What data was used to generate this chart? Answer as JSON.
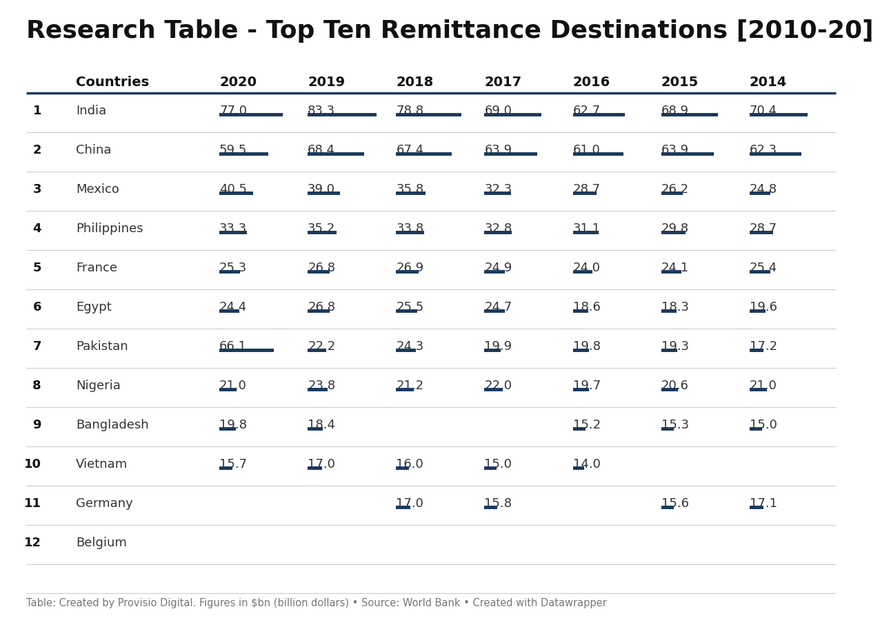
{
  "title": "Research Table - Top Ten Remittance Destinations [2010-20]",
  "footer": "Table: Created by Provisio Digital. Figures in $bn (billion dollars) • Source: World Bank • Created with Datawrapper",
  "col_years": [
    "2020",
    "2019",
    "2018",
    "2017",
    "2016",
    "2015",
    "2014"
  ],
  "rows": [
    {
      "rank": "1",
      "country": "India",
      "2020": 77.0,
      "2019": 83.3,
      "2018": 78.8,
      "2017": 69.0,
      "2016": 62.7,
      "2015": 68.9,
      "2014": 70.4
    },
    {
      "rank": "2",
      "country": "China",
      "2020": 59.5,
      "2019": 68.4,
      "2018": 67.4,
      "2017": 63.9,
      "2016": 61.0,
      "2015": 63.9,
      "2014": 62.3
    },
    {
      "rank": "3",
      "country": "Mexico",
      "2020": 40.5,
      "2019": 39.0,
      "2018": 35.8,
      "2017": 32.3,
      "2016": 28.7,
      "2015": 26.2,
      "2014": 24.8
    },
    {
      "rank": "4",
      "country": "Philippines",
      "2020": 33.3,
      "2019": 35.2,
      "2018": 33.8,
      "2017": 32.8,
      "2016": 31.1,
      "2015": 29.8,
      "2014": 28.7
    },
    {
      "rank": "5",
      "country": "France",
      "2020": 25.3,
      "2019": 26.8,
      "2018": 26.9,
      "2017": 24.9,
      "2016": 24.0,
      "2015": 24.1,
      "2014": 25.4
    },
    {
      "rank": "6",
      "country": "Egypt",
      "2020": 24.4,
      "2019": 26.8,
      "2018": 25.5,
      "2017": 24.7,
      "2016": 18.6,
      "2015": 18.3,
      "2014": 19.6
    },
    {
      "rank": "7",
      "country": "Pakistan",
      "2020": 66.1,
      "2019": 22.2,
      "2018": 24.3,
      "2017": 19.9,
      "2016": 19.8,
      "2015": 19.3,
      "2014": 17.2
    },
    {
      "rank": "8",
      "country": "Nigeria",
      "2020": 21.0,
      "2019": 23.8,
      "2018": 21.2,
      "2017": 22.0,
      "2016": 19.7,
      "2015": 20.6,
      "2014": 21.0
    },
    {
      "rank": "9",
      "country": "Bangladesh",
      "2020": 19.8,
      "2019": 18.4,
      "2018": null,
      "2017": null,
      "2016": 15.2,
      "2015": 15.3,
      "2014": 15.0
    },
    {
      "rank": "10",
      "country": "Vietnam",
      "2020": 15.7,
      "2019": 17.0,
      "2018": 16.0,
      "2017": 15.0,
      "2016": 14.0,
      "2015": null,
      "2014": null
    },
    {
      "rank": "11",
      "country": "Germany",
      "2020": null,
      "2019": null,
      "2018": 17.0,
      "2017": 15.8,
      "2016": null,
      "2015": 15.6,
      "2014": 17.1
    },
    {
      "rank": "12",
      "country": "Belgium",
      "2020": null,
      "2019": null,
      "2018": null,
      "2017": null,
      "2016": null,
      "2015": null,
      "2014": null
    }
  ],
  "bar_color": "#1b3a5c",
  "bar_max": 83.3,
  "bg_color": "#ffffff",
  "title_color": "#111111",
  "header_color": "#111111",
  "rank_color": "#111111",
  "country_color": "#333333",
  "value_color": "#333333",
  "footer_color": "#777777",
  "separator_color": "#cccccc",
  "header_sep_color": "#1b3a5c",
  "title_fontsize": 26,
  "header_fontsize": 14,
  "cell_fontsize": 13,
  "rank_fontsize": 13,
  "footer_fontsize": 10.5
}
